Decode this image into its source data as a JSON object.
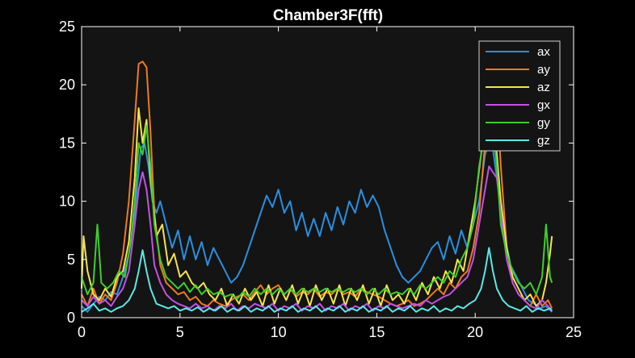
{
  "chart_data": {
    "type": "line",
    "title": "Chamber3F(fft)",
    "xlim": [
      0,
      25
    ],
    "ylim": [
      0,
      25
    ],
    "xticks": [
      0,
      5,
      10,
      15,
      20,
      25
    ],
    "yticks": [
      0,
      5,
      10,
      15,
      20,
      25
    ],
    "grid": false,
    "legend_position": "top-right",
    "background": "#141414",
    "axis_color": "#ffffff",
    "series": [
      {
        "name": "ax",
        "color": "#2a8fe0",
        "x": [
          0,
          0.3,
          0.6,
          0.9,
          1.2,
          1.5,
          1.8,
          2.1,
          2.4,
          2.7,
          3.0,
          3.2,
          3.4,
          3.6,
          3.8,
          4.0,
          4.3,
          4.6,
          4.9,
          5.2,
          5.5,
          5.8,
          6.1,
          6.4,
          6.7,
          7.0,
          7.3,
          7.6,
          7.9,
          8.2,
          8.5,
          8.8,
          9.1,
          9.4,
          9.7,
          10.0,
          10.3,
          10.6,
          10.9,
          11.2,
          11.5,
          11.8,
          12.1,
          12.4,
          12.7,
          13.0,
          13.3,
          13.6,
          13.9,
          14.2,
          14.5,
          14.8,
          15.1,
          15.4,
          15.7,
          16.0,
          16.3,
          16.6,
          16.9,
          17.2,
          17.5,
          17.8,
          18.1,
          18.4,
          18.7,
          19.0,
          19.3,
          19.6,
          19.9,
          20.2,
          20.5,
          20.7,
          20.9,
          21.1,
          21.3,
          21.5,
          21.8,
          22.1,
          22.4,
          22.7,
          23.0,
          23.3,
          23.6,
          23.9
        ],
        "values": [
          1.0,
          0.5,
          1.2,
          1.8,
          1.5,
          2.2,
          2.0,
          3.5,
          5.5,
          9.0,
          14.5,
          15.0,
          13.0,
          10.0,
          9.0,
          10.0,
          8.0,
          6.0,
          7.5,
          5.0,
          7.0,
          5.0,
          6.5,
          4.5,
          6.0,
          5.0,
          4.0,
          3.0,
          3.5,
          4.5,
          6.0,
          7.5,
          9.0,
          10.5,
          9.5,
          11.0,
          9.0,
          10.0,
          7.5,
          9.0,
          7.0,
          8.5,
          7.0,
          9.0,
          7.5,
          9.5,
          8.0,
          10.0,
          9.0,
          11.0,
          9.5,
          10.5,
          9.5,
          7.5,
          6.0,
          4.5,
          3.5,
          3.0,
          3.5,
          4.0,
          5.0,
          6.0,
          6.5,
          5.0,
          7.0,
          5.5,
          7.5,
          6.0,
          8.0,
          10.0,
          14.0,
          15.0,
          14.5,
          12.0,
          10.0,
          7.0,
          4.5,
          3.5,
          2.5,
          1.5,
          1.2,
          0.8,
          1.0,
          0.5
        ]
      },
      {
        "name": "ay",
        "color": "#f07a1f",
        "x": [
          0,
          0.3,
          0.6,
          0.9,
          1.2,
          1.5,
          1.8,
          2.1,
          2.4,
          2.7,
          2.9,
          3.1,
          3.3,
          3.5,
          3.7,
          4.0,
          4.3,
          4.6,
          4.9,
          5.2,
          5.5,
          5.8,
          6.1,
          6.4,
          6.7,
          7.0,
          7.3,
          7.6,
          7.9,
          8.2,
          8.5,
          8.8,
          9.1,
          9.4,
          9.7,
          10.0,
          10.3,
          10.6,
          10.9,
          11.2,
          11.5,
          11.8,
          12.1,
          12.4,
          12.7,
          13.0,
          13.3,
          13.6,
          13.9,
          14.2,
          14.5,
          14.8,
          15.1,
          15.4,
          15.7,
          16.0,
          16.3,
          16.6,
          16.9,
          17.2,
          17.5,
          17.8,
          18.1,
          18.4,
          18.7,
          19.0,
          19.3,
          19.6,
          19.9,
          20.2,
          20.5,
          20.7,
          20.9,
          21.1,
          21.3,
          21.6,
          21.9,
          22.2,
          22.5,
          22.8,
          23.1,
          23.4,
          23.7,
          23.9
        ],
        "values": [
          2.0,
          1.0,
          2.5,
          1.2,
          2.0,
          1.5,
          3.0,
          5.5,
          10.0,
          17.0,
          21.8,
          22.0,
          21.5,
          16.0,
          9.0,
          4.5,
          3.0,
          2.5,
          2.0,
          2.2,
          1.5,
          1.8,
          1.2,
          1.0,
          1.5,
          1.2,
          1.0,
          1.5,
          1.8,
          2.0,
          1.5,
          2.2,
          2.8,
          2.0,
          2.5,
          2.8,
          2.0,
          2.5,
          1.8,
          2.2,
          2.0,
          2.5,
          1.8,
          2.2,
          2.0,
          2.5,
          2.0,
          2.2,
          1.8,
          2.5,
          2.2,
          2.0,
          1.8,
          1.5,
          1.2,
          1.0,
          1.2,
          1.5,
          1.0,
          1.2,
          1.5,
          2.0,
          2.5,
          2.0,
          3.0,
          2.5,
          3.5,
          4.0,
          6.0,
          9.0,
          15.0,
          20.5,
          21.0,
          19.0,
          13.0,
          6.0,
          3.0,
          2.0,
          1.5,
          1.0,
          2.0,
          1.0,
          1.5,
          0.8
        ]
      },
      {
        "name": "az",
        "color": "#f5e44a",
        "x": [
          0,
          0.1,
          0.3,
          0.6,
          0.9,
          1.2,
          1.5,
          1.8,
          2.1,
          2.4,
          2.7,
          2.9,
          3.1,
          3.3,
          3.5,
          3.8,
          4.1,
          4.4,
          4.7,
          5.0,
          5.3,
          5.6,
          5.9,
          6.2,
          6.5,
          6.8,
          7.1,
          7.4,
          7.7,
          8.0,
          8.3,
          8.6,
          8.9,
          9.2,
          9.5,
          9.8,
          10.1,
          10.4,
          10.7,
          11.0,
          11.3,
          11.6,
          11.9,
          12.2,
          12.5,
          12.8,
          13.1,
          13.4,
          13.7,
          14.0,
          14.3,
          14.6,
          14.9,
          15.2,
          15.5,
          15.8,
          16.1,
          16.4,
          16.7,
          17.0,
          17.3,
          17.6,
          17.9,
          18.2,
          18.5,
          18.8,
          19.1,
          19.4,
          19.7,
          20.0,
          20.3,
          20.5,
          20.7,
          20.9,
          21.1,
          21.3,
          21.6,
          21.9,
          22.2,
          22.5,
          22.8,
          23.1,
          23.4,
          23.6,
          23.8,
          23.9
        ],
        "values": [
          2.5,
          7.0,
          4.0,
          2.0,
          1.5,
          2.5,
          1.8,
          3.5,
          4.0,
          6.5,
          12.0,
          18.0,
          15.0,
          17.0,
          12.0,
          7.0,
          8.0,
          4.5,
          5.5,
          3.5,
          4.0,
          3.0,
          2.5,
          3.0,
          2.0,
          1.5,
          2.5,
          1.0,
          2.0,
          1.2,
          2.5,
          1.5,
          2.2,
          1.0,
          2.8,
          1.2,
          2.5,
          1.5,
          2.8,
          1.2,
          2.5,
          1.0,
          2.8,
          1.5,
          2.5,
          1.2,
          2.8,
          1.0,
          2.5,
          1.5,
          2.8,
          1.2,
          2.5,
          1.0,
          2.8,
          1.5,
          2.0,
          1.2,
          2.5,
          1.5,
          3.0,
          2.0,
          3.5,
          2.5,
          4.0,
          3.0,
          5.0,
          4.0,
          7.0,
          10.0,
          14.0,
          18.0,
          16.0,
          17.5,
          14.0,
          10.0,
          6.0,
          3.5,
          2.5,
          1.5,
          2.0,
          1.0,
          1.5,
          3.0,
          5.5,
          7.0
        ]
      },
      {
        "name": "gx",
        "color": "#c550e8",
        "x": [
          0,
          0.3,
          0.6,
          0.9,
          1.2,
          1.5,
          1.8,
          2.1,
          2.4,
          2.7,
          2.9,
          3.1,
          3.3,
          3.5,
          3.7,
          4.0,
          4.3,
          4.6,
          4.9,
          5.2,
          5.5,
          5.8,
          6.1,
          6.4,
          6.7,
          7.0,
          7.3,
          7.6,
          7.9,
          8.2,
          8.5,
          8.8,
          9.1,
          9.4,
          9.7,
          10.0,
          10.3,
          10.6,
          10.9,
          11.2,
          11.5,
          11.8,
          12.1,
          12.4,
          12.7,
          13.0,
          13.3,
          13.6,
          13.9,
          14.2,
          14.5,
          14.8,
          15.1,
          15.4,
          15.7,
          16.0,
          16.3,
          16.6,
          16.9,
          17.2,
          17.5,
          17.8,
          18.1,
          18.4,
          18.7,
          19.0,
          19.3,
          19.6,
          19.9,
          20.2,
          20.5,
          20.7,
          20.9,
          21.1,
          21.3,
          21.6,
          21.9,
          22.2,
          22.5,
          22.8,
          23.1,
          23.4,
          23.7,
          23.9
        ],
        "values": [
          1.5,
          1.0,
          1.8,
          1.2,
          1.5,
          1.0,
          1.8,
          2.5,
          4.0,
          8.0,
          11.0,
          12.5,
          11.0,
          8.0,
          4.5,
          3.0,
          2.0,
          1.5,
          1.2,
          1.0,
          0.8,
          1.2,
          0.8,
          1.0,
          0.6,
          1.0,
          0.8,
          1.2,
          0.6,
          1.0,
          0.8,
          1.2,
          1.0,
          0.8,
          1.2,
          0.6,
          1.0,
          0.8,
          1.2,
          0.6,
          1.0,
          0.8,
          1.2,
          0.6,
          1.0,
          0.8,
          1.2,
          0.6,
          1.0,
          0.8,
          1.2,
          0.6,
          1.0,
          0.8,
          1.2,
          1.0,
          0.8,
          1.0,
          1.2,
          1.0,
          1.5,
          1.2,
          1.5,
          1.8,
          2.0,
          2.5,
          3.0,
          3.5,
          5.0,
          8.0,
          11.0,
          13.0,
          12.5,
          12.0,
          9.0,
          5.0,
          3.0,
          2.0,
          1.5,
          1.0,
          0.8,
          1.5,
          1.0,
          0.5
        ]
      },
      {
        "name": "gy",
        "color": "#3ecf2a",
        "x": [
          0,
          0.3,
          0.6,
          0.8,
          1.0,
          1.3,
          1.6,
          1.9,
          2.2,
          2.5,
          2.7,
          2.9,
          3.1,
          3.3,
          3.5,
          3.7,
          4.0,
          4.3,
          4.6,
          4.9,
          5.2,
          5.5,
          5.8,
          6.1,
          6.4,
          6.7,
          7.0,
          7.3,
          7.6,
          7.9,
          8.2,
          8.5,
          8.8,
          9.1,
          9.4,
          9.7,
          10.0,
          10.3,
          10.6,
          10.9,
          11.2,
          11.5,
          11.8,
          12.1,
          12.4,
          12.7,
          13.0,
          13.3,
          13.6,
          13.9,
          14.2,
          14.5,
          14.8,
          15.1,
          15.4,
          15.7,
          16.0,
          16.3,
          16.6,
          16.9,
          17.2,
          17.5,
          17.8,
          18.1,
          18.4,
          18.7,
          19.0,
          19.3,
          19.6,
          19.9,
          20.2,
          20.5,
          20.7,
          20.9,
          21.1,
          21.3,
          21.6,
          21.9,
          22.2,
          22.5,
          22.8,
          23.1,
          23.4,
          23.6,
          23.8,
          23.9
        ],
        "values": [
          3.5,
          2.0,
          3.0,
          8.0,
          3.0,
          2.5,
          3.0,
          4.0,
          3.5,
          6.5,
          10.0,
          15.0,
          14.0,
          16.5,
          13.0,
          8.0,
          5.0,
          3.5,
          3.0,
          2.5,
          3.0,
          2.2,
          2.8,
          2.0,
          2.5,
          2.0,
          2.2,
          1.8,
          2.0,
          1.6,
          2.2,
          1.8,
          2.5,
          2.0,
          2.5,
          2.0,
          2.5,
          2.0,
          2.5,
          2.0,
          2.5,
          2.2,
          2.5,
          2.2,
          2.5,
          2.2,
          2.5,
          2.2,
          2.5,
          2.2,
          2.5,
          2.0,
          2.5,
          2.0,
          2.5,
          2.0,
          2.2,
          2.0,
          2.5,
          2.0,
          2.8,
          2.5,
          3.0,
          3.5,
          3.0,
          4.0,
          3.5,
          5.0,
          6.0,
          8.0,
          13.0,
          16.0,
          14.5,
          16.5,
          13.0,
          8.0,
          5.5,
          4.0,
          3.0,
          2.5,
          3.0,
          2.0,
          3.5,
          8.0,
          3.5,
          3.0
        ]
      },
      {
        "name": "gz",
        "color": "#5ce8e8",
        "x": [
          0,
          0.3,
          0.6,
          0.9,
          1.2,
          1.5,
          1.8,
          2.1,
          2.4,
          2.7,
          2.9,
          3.1,
          3.3,
          3.5,
          3.8,
          4.1,
          4.4,
          4.7,
          5.0,
          5.3,
          5.6,
          5.9,
          6.2,
          6.5,
          6.8,
          7.1,
          7.4,
          7.7,
          8.0,
          8.3,
          8.6,
          8.9,
          9.2,
          9.5,
          9.8,
          10.1,
          10.4,
          10.7,
          11.0,
          11.3,
          11.6,
          11.9,
          12.2,
          12.5,
          12.8,
          13.1,
          13.4,
          13.7,
          14.0,
          14.3,
          14.6,
          14.9,
          15.2,
          15.5,
          15.8,
          16.1,
          16.4,
          16.7,
          17.0,
          17.3,
          17.6,
          17.9,
          18.2,
          18.5,
          18.8,
          19.1,
          19.4,
          19.7,
          20.0,
          20.3,
          20.5,
          20.7,
          20.9,
          21.1,
          21.4,
          21.7,
          22.0,
          22.3,
          22.6,
          22.9,
          23.2,
          23.5,
          23.8,
          23.9
        ],
        "values": [
          0.5,
          0.8,
          1.2,
          0.6,
          0.8,
          0.5,
          0.8,
          1.0,
          1.5,
          2.5,
          4.0,
          5.8,
          4.0,
          2.5,
          1.2,
          1.0,
          0.8,
          1.0,
          0.6,
          0.8,
          0.6,
          0.9,
          0.5,
          0.8,
          0.6,
          1.0,
          0.5,
          0.8,
          0.6,
          1.0,
          0.5,
          0.8,
          0.6,
          1.0,
          0.5,
          0.8,
          0.6,
          1.0,
          0.5,
          0.8,
          0.6,
          1.0,
          0.5,
          0.8,
          0.6,
          1.0,
          0.5,
          0.8,
          0.6,
          1.0,
          0.5,
          0.8,
          0.6,
          1.0,
          0.5,
          0.8,
          0.6,
          1.0,
          0.5,
          0.8,
          0.6,
          1.0,
          0.5,
          0.8,
          0.6,
          1.0,
          0.8,
          1.2,
          1.5,
          2.5,
          4.0,
          6.0,
          4.0,
          2.5,
          1.5,
          1.0,
          0.8,
          0.6,
          1.0,
          0.5,
          0.8,
          0.6,
          0.8,
          0.6
        ]
      }
    ]
  }
}
